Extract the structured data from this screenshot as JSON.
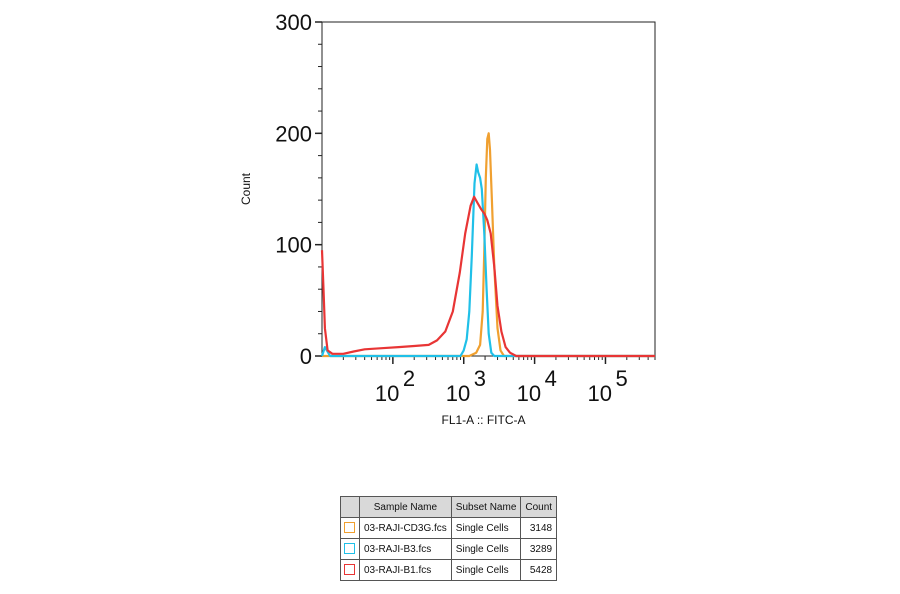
{
  "chart_data": {
    "type": "line",
    "title": "",
    "xlabel": "FL1-A :: FITC-A",
    "ylabel": "Count",
    "x_scale": "log",
    "xlim": [
      10,
      500000
    ],
    "ylim": [
      0,
      300
    ],
    "y_ticks": [
      0,
      100,
      200,
      300
    ],
    "x_ticks": [
      {
        "value": 100,
        "base": "10",
        "exp": "2"
      },
      {
        "value": 1000,
        "base": "10",
        "exp": "3"
      },
      {
        "value": 10000,
        "base": "10",
        "exp": "4"
      },
      {
        "value": 100000,
        "base": "10",
        "exp": "5"
      }
    ],
    "series": [
      {
        "color": "#f0a030",
        "points": [
          [
            10,
            0
          ],
          [
            1200,
            0
          ],
          [
            1500,
            3
          ],
          [
            1700,
            10
          ],
          [
            1850,
            40
          ],
          [
            1950,
            95
          ],
          [
            2050,
            160
          ],
          [
            2150,
            195
          ],
          [
            2250,
            200
          ],
          [
            2350,
            185
          ],
          [
            2500,
            140
          ],
          [
            2700,
            80
          ],
          [
            3000,
            25
          ],
          [
            3300,
            5
          ],
          [
            3700,
            0
          ],
          [
            500000,
            0
          ]
        ]
      },
      {
        "color": "#20c0e8",
        "points": [
          [
            10,
            0
          ],
          [
            11,
            8
          ],
          [
            13,
            0
          ],
          [
            900,
            0
          ],
          [
            1000,
            5
          ],
          [
            1100,
            15
          ],
          [
            1200,
            40
          ],
          [
            1300,
            90
          ],
          [
            1420,
            155
          ],
          [
            1520,
            172
          ],
          [
            1600,
            165
          ],
          [
            1700,
            160
          ],
          [
            1800,
            150
          ],
          [
            1950,
            110
          ],
          [
            2100,
            60
          ],
          [
            2250,
            20
          ],
          [
            2450,
            3
          ],
          [
            2700,
            0
          ],
          [
            500000,
            0
          ]
        ]
      },
      {
        "color": "#e83535",
        "points": [
          [
            10,
            95
          ],
          [
            10.5,
            60
          ],
          [
            11,
            25
          ],
          [
            12,
            5
          ],
          [
            14,
            2
          ],
          [
            20,
            2
          ],
          [
            28,
            4
          ],
          [
            40,
            6
          ],
          [
            70,
            7
          ],
          [
            120,
            8
          ],
          [
            200,
            9
          ],
          [
            320,
            10
          ],
          [
            420,
            14
          ],
          [
            550,
            22
          ],
          [
            700,
            40
          ],
          [
            880,
            75
          ],
          [
            1050,
            110
          ],
          [
            1250,
            135
          ],
          [
            1400,
            143
          ],
          [
            1550,
            138
          ],
          [
            1750,
            132
          ],
          [
            1950,
            128
          ],
          [
            2150,
            122
          ],
          [
            2400,
            110
          ],
          [
            2700,
            80
          ],
          [
            3000,
            45
          ],
          [
            3400,
            22
          ],
          [
            3900,
            8
          ],
          [
            4500,
            3
          ],
          [
            5500,
            0
          ],
          [
            500000,
            0
          ]
        ]
      }
    ],
    "legend": {
      "headers": [
        "Sample Name",
        "Subset Name",
        "Count"
      ],
      "rows": [
        {
          "color": "#f0a030",
          "sample": "03-RAJI-CD3G.fcs",
          "subset": "Single Cells",
          "count": "3148"
        },
        {
          "color": "#20c0e8",
          "sample": "03-RAJI-B3.fcs",
          "subset": "Single Cells",
          "count": "3289"
        },
        {
          "color": "#e83535",
          "sample": "03-RAJI-B1.fcs",
          "subset": "Single Cells",
          "count": "5428"
        }
      ]
    }
  }
}
